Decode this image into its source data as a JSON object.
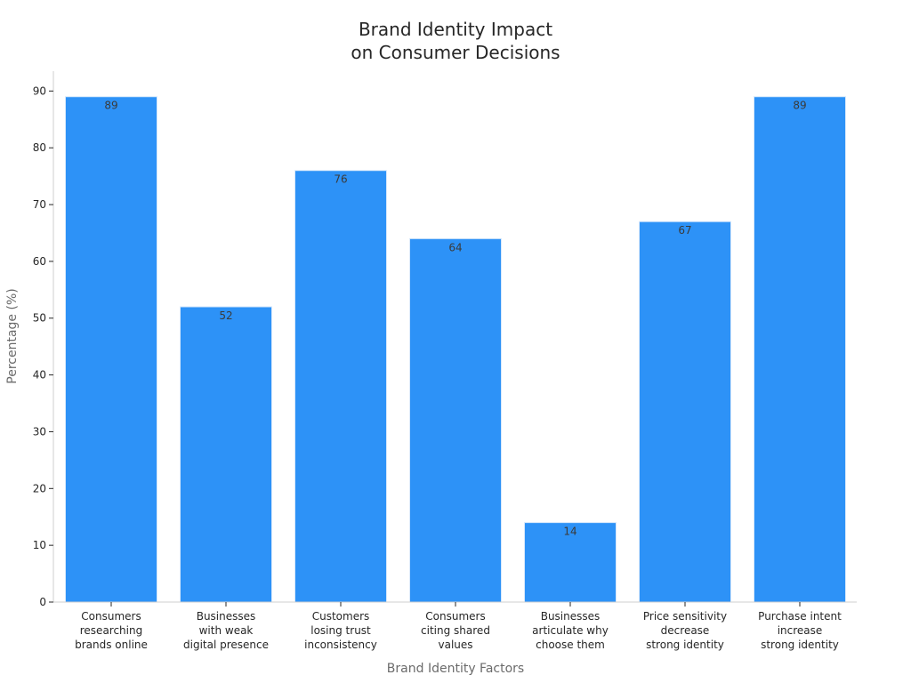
{
  "chart_data": {
    "type": "bar",
    "title": [
      "Brand Identity Impact",
      "on Consumer Decisions"
    ],
    "xlabel": "Brand Identity Factors",
    "ylabel": "Percentage (%)",
    "categories": [
      [
        "Consumers",
        "researching",
        "brands online"
      ],
      [
        "Businesses",
        "with weak",
        "digital presence"
      ],
      [
        "Customers",
        "losing trust",
        "inconsistency"
      ],
      [
        "Consumers",
        "citing shared",
        "values"
      ],
      [
        "Businesses",
        "articulate why",
        "choose them"
      ],
      [
        "Price sensitivity",
        "decrease",
        "strong identity"
      ],
      [
        "Purchase intent",
        "increase",
        "strong identity"
      ]
    ],
    "values": [
      89,
      52,
      76,
      64,
      14,
      67,
      89
    ],
    "ylim": [
      0,
      93.5
    ],
    "yticks": [
      0,
      10,
      20,
      30,
      40,
      50,
      60,
      70,
      80,
      90
    ],
    "bar_color": "#2d92f7",
    "grid": false,
    "data_labels": true
  }
}
